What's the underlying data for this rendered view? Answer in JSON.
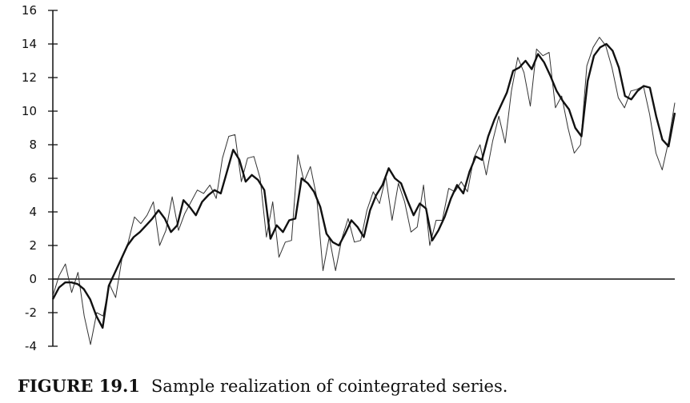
{
  "caption": {
    "label": "FIGURE 19.1",
    "text": "Sample realization of cointegrated series."
  },
  "chart_data": {
    "type": "line",
    "title": "",
    "xlabel": "",
    "ylabel": "",
    "ylim": [
      -4,
      16
    ],
    "yticks": [
      -4,
      -2,
      0,
      2,
      4,
      6,
      8,
      10,
      12,
      14,
      16
    ],
    "grid": false,
    "x_axis_at": 0,
    "series": [
      {
        "style": "thick",
        "color": "#111111",
        "values": [
          -1.2,
          -0.5,
          -0.2,
          -0.2,
          -0.3,
          -0.6,
          -1.2,
          -2.2,
          -2.9,
          -0.4,
          0.4,
          1.2,
          2.0,
          2.5,
          2.8,
          3.2,
          3.6,
          4.1,
          3.6,
          2.8,
          3.2,
          4.7,
          4.3,
          3.8,
          4.6,
          5.0,
          5.3,
          5.1,
          6.4,
          7.7,
          7.1,
          5.8,
          6.2,
          5.9,
          5.3,
          2.4,
          3.2,
          2.8,
          3.5,
          3.6,
          6.0,
          5.7,
          5.2,
          4.3,
          2.7,
          2.2,
          2.0,
          2.7,
          3.5,
          3.1,
          2.5,
          4.1,
          5.0,
          5.6,
          6.6,
          6.0,
          5.7,
          4.7,
          3.8,
          4.5,
          4.2,
          2.3,
          2.9,
          3.7,
          4.8,
          5.6,
          5.1,
          6.4,
          7.3,
          7.1,
          8.5,
          9.5,
          10.3,
          11.1,
          12.4,
          12.6,
          13.0,
          12.5,
          13.4,
          12.9,
          12.1,
          11.2,
          10.6,
          10.1,
          9.0,
          8.5,
          11.8,
          13.3,
          13.8,
          14.0,
          13.6,
          12.6,
          10.9,
          10.7,
          11.2,
          11.5,
          11.4,
          9.7,
          8.3,
          7.9,
          9.9
        ]
      },
      {
        "style": "thin",
        "color": "#333333",
        "values": [
          -1.0,
          0.2,
          0.9,
          -0.8,
          0.4,
          -2.2,
          -3.9,
          -2.0,
          -2.2,
          -0.3,
          -1.1,
          1.2,
          2.2,
          3.7,
          3.3,
          3.8,
          4.6,
          2.0,
          2.9,
          4.9,
          2.9,
          3.9,
          4.6,
          5.3,
          5.1,
          5.6,
          4.8,
          7.2,
          8.5,
          8.6,
          5.8,
          7.2,
          7.3,
          6.0,
          2.5,
          4.6,
          1.3,
          2.2,
          2.3,
          7.4,
          5.8,
          6.7,
          4.9,
          0.5,
          2.5,
          0.5,
          2.4,
          3.6,
          2.2,
          2.3,
          4.1,
          5.2,
          4.5,
          6.1,
          3.5,
          5.7,
          4.6,
          2.8,
          3.1,
          5.6,
          2.0,
          3.5,
          3.5,
          5.4,
          5.2,
          5.8,
          5.2,
          7.2,
          8.0,
          6.2,
          8.2,
          9.7,
          8.1,
          11.2,
          13.2,
          12.3,
          10.3,
          13.7,
          13.3,
          13.5,
          10.2,
          10.9,
          9.0,
          7.5,
          8.0,
          12.7,
          13.8,
          14.4,
          13.9,
          12.6,
          10.8,
          10.2,
          11.2,
          11.3,
          11.5,
          9.8,
          7.5,
          6.5,
          8.2,
          10.5
        ]
      }
    ]
  }
}
